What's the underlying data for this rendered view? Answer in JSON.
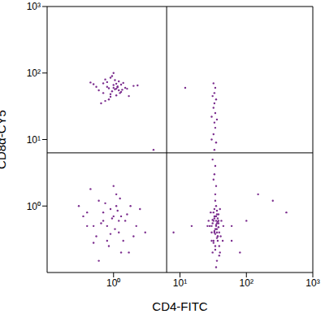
{
  "chart_data": {
    "type": "scatter",
    "x_label": "CD4-FITC",
    "y_label": "CD8α-CY5",
    "log": true,
    "color": "#7b2d8e",
    "marker": "dot",
    "xlim": [
      0.1,
      1000
    ],
    "ylim": [
      0.1,
      1000
    ],
    "xticks": [
      {
        "value": 1,
        "label": "10⁰"
      },
      {
        "value": 10,
        "label": "10¹"
      },
      {
        "value": 100,
        "label": "10²"
      },
      {
        "value": 1000,
        "label": "10³"
      }
    ],
    "yticks": [
      {
        "value": 1,
        "label": "10⁰"
      },
      {
        "value": 10,
        "label": "10¹"
      },
      {
        "value": 100,
        "label": "10²"
      },
      {
        "value": 1000,
        "label": "10³"
      }
    ],
    "quadrant_gate": {
      "x": 6.3,
      "y": 6.3
    },
    "x": [
      0.6,
      0.7,
      0.8,
      0.9,
      1.0,
      1.1,
      1.2,
      1.3,
      1.5,
      1.7,
      0.5,
      0.75,
      0.85,
      0.95,
      1.05,
      1.15,
      1.25,
      1.4,
      0.65,
      0.9,
      1.0,
      1.1,
      0.8,
      1.2,
      0.55,
      1.6,
      2.0,
      0.45,
      0.7,
      1.3,
      0.95,
      1.05,
      0.85,
      1.15,
      1.0,
      0.9,
      1.1,
      0.75,
      1.35,
      2.3,
      0.4,
      0.5,
      0.6,
      0.7,
      0.8,
      0.9,
      1.0,
      1.1,
      1.2,
      1.3,
      1.5,
      1.8,
      2.2,
      0.35,
      0.45,
      0.55,
      0.65,
      0.75,
      0.85,
      0.95,
      1.05,
      1.15,
      1.25,
      1.4,
      1.6,
      2.5,
      3.0,
      0.3,
      0.6,
      0.8,
      1.0,
      1.2,
      0.7,
      0.9,
      1.1,
      0.5,
      1.3,
      2.0,
      0.4,
      1.7,
      30,
      32,
      34,
      36,
      38,
      40,
      33,
      35,
      37,
      31,
      29,
      39,
      42,
      34,
      36,
      35,
      33,
      37,
      30,
      38,
      28,
      41,
      34,
      36,
      35,
      32,
      39,
      31,
      37,
      33,
      45,
      27,
      35,
      36,
      34,
      38,
      32,
      40,
      35,
      33,
      37,
      34,
      36,
      31,
      39,
      35,
      30,
      38,
      34,
      36,
      33,
      35,
      37,
      32,
      44,
      26,
      35,
      34,
      36,
      60,
      32,
      33,
      34,
      31,
      33,
      35,
      32,
      34,
      33,
      30,
      34,
      32,
      33,
      35,
      31,
      33,
      34,
      32,
      30,
      36,
      100,
      250,
      400,
      60,
      15,
      4,
      8,
      80,
      150,
      12
    ],
    "values": [
      55,
      70,
      62,
      48,
      66,
      58,
      75,
      52,
      60,
      45,
      68,
      80,
      40,
      90,
      57,
      63,
      50,
      71,
      35,
      85,
      60,
      46,
      73,
      55,
      62,
      58,
      64,
      72,
      50,
      67,
      53,
      78,
      59,
      61,
      100,
      44,
      69,
      38,
      56,
      65,
      0.8,
      0.5,
      1.2,
      0.6,
      0.3,
      0.9,
      0.7,
      1.5,
      0.4,
      0.2,
      0.6,
      1.0,
      0.5,
      0.7,
      1.8,
      0.35,
      0.55,
      1.1,
      0.25,
      0.65,
      0.45,
      0.85,
      1.3,
      0.3,
      0.75,
      0.9,
      0.4,
      1.0,
      0.15,
      0.5,
      2.0,
      0.6,
      0.8,
      0.38,
      1.0,
      0.28,
      0.7,
      0.35,
      0.5,
      0.2,
      0.5,
      0.3,
      0.7,
      0.4,
      0.6,
      0.2,
      0.9,
      0.45,
      0.35,
      0.55,
      0.8,
      0.25,
      0.6,
      1.2,
      0.15,
      0.5,
      0.4,
      0.65,
      0.3,
      0.75,
      0.5,
      0.35,
      0.45,
      0.55,
      1.0,
      0.6,
      0.4,
      0.2,
      0.3,
      0.7,
      0.5,
      0.6,
      0.12,
      0.85,
      0.38,
      0.48,
      0.28,
      0.9,
      0.52,
      0.42,
      0.58,
      1.5,
      0.33,
      0.62,
      0.18,
      0.7,
      0.4,
      0.55,
      0.25,
      0.45,
      0.65,
      2.0,
      0.35,
      0.8,
      0.3,
      0.5,
      0.6,
      0.22,
      0.75,
      0.5,
      2.5,
      3,
      4,
      5,
      7,
      9,
      12,
      15,
      18,
      22,
      25,
      30,
      35,
      40,
      45,
      50,
      60,
      70,
      10,
      20,
      0.6,
      1.2,
      0.8,
      0.3,
      0.5,
      7,
      0.4,
      0.2,
      1.5,
      60
    ]
  }
}
